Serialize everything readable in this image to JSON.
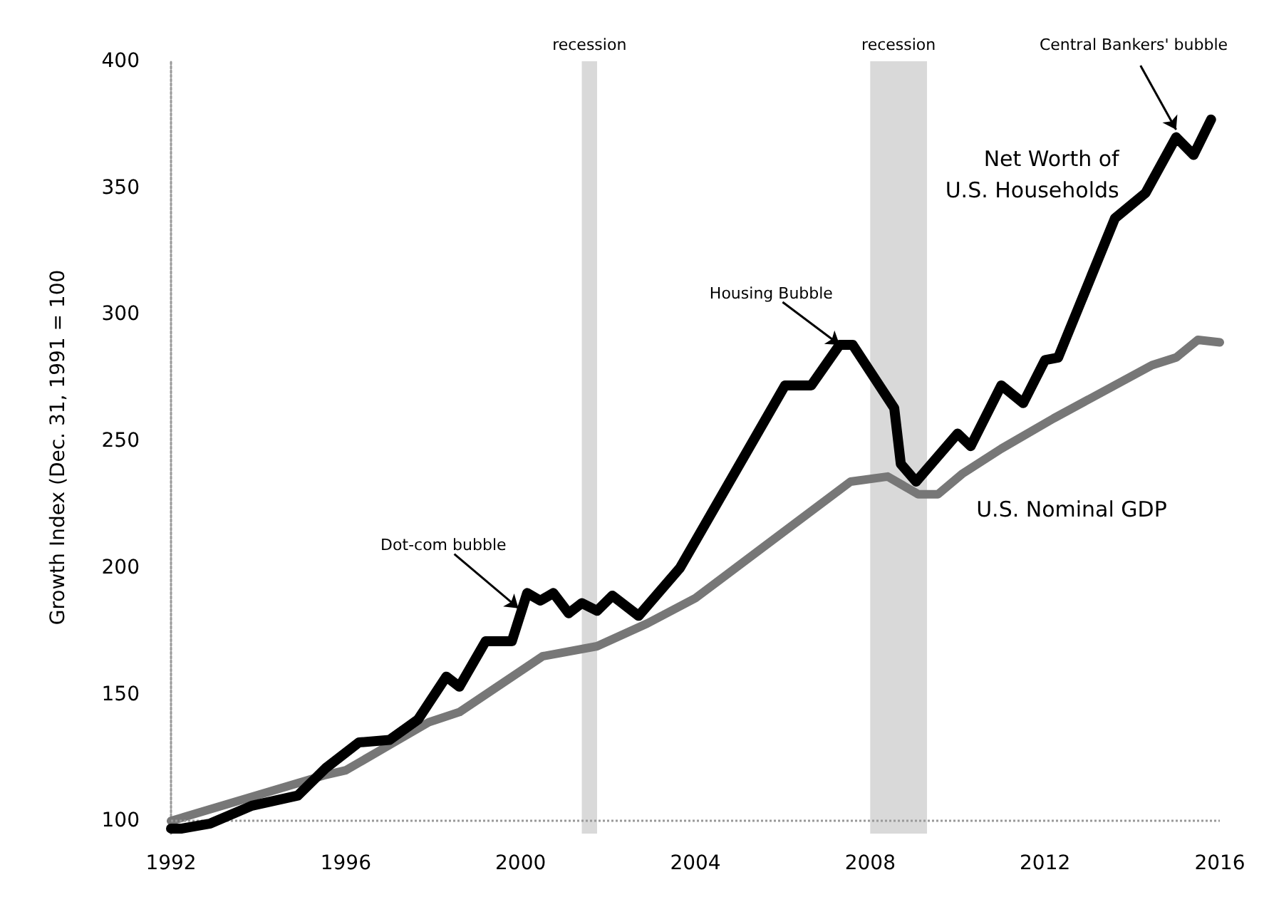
{
  "chart_data": {
    "type": "line",
    "ylabel": "Growth Index (Dec. 31, 1991 = 100",
    "xlim": [
      1992,
      2016
    ],
    "xticks": [
      1992,
      1996,
      2000,
      2004,
      2008,
      2012,
      2016
    ],
    "ylim": [
      95,
      400
    ],
    "yticks": [
      100,
      150,
      200,
      250,
      300,
      350,
      400
    ],
    "grid": false,
    "legend": false,
    "marker": "none",
    "line_style": "solid",
    "series": [
      {
        "name": "Net Worth of U.S. Households",
        "color": "#000000",
        "x": [
          1992.0,
          1992.25,
          1992.9,
          1993.85,
          1994.9,
          1995.55,
          1996.3,
          1997.0,
          1997.65,
          1998.3,
          1998.6,
          1999.2,
          1999.8,
          2000.15,
          2000.45,
          2000.75,
          2001.1,
          2001.4,
          2001.75,
          2002.1,
          2002.7,
          2003.65,
          2006.05,
          2006.65,
          2007.3,
          2007.6,
          2008.55,
          2008.7,
          2009.05,
          2010.0,
          2010.3,
          2011.0,
          2011.5,
          2012.0,
          2012.3,
          2013.6,
          2014.3,
          2015.0,
          2015.4,
          2015.8
        ],
        "values": [
          97,
          97,
          99,
          106,
          110,
          121,
          131,
          132,
          140,
          157,
          153,
          171,
          171,
          190,
          187,
          190,
          182,
          186,
          183,
          189,
          181,
          200,
          272,
          272,
          288,
          288,
          263,
          241,
          234,
          253,
          248,
          272,
          265,
          282,
          283,
          338,
          348,
          370,
          363,
          377
        ]
      },
      {
        "name": "U.S. Nominal GDP",
        "color": "#777777",
        "x": [
          1992.0,
          1995.5,
          1996.0,
          1997.0,
          1997.9,
          1998.6,
          2000.5,
          2001.75,
          2002.9,
          2004.0,
          2007.55,
          2008.4,
          2009.1,
          2009.55,
          2010.1,
          2011.0,
          2012.2,
          2014.45,
          2015.0,
          2015.5,
          2016.0
        ],
        "values": [
          100,
          118,
          120,
          130,
          139,
          143,
          165,
          169,
          178,
          188,
          234,
          236,
          229,
          229,
          237,
          247,
          259,
          280,
          283,
          290,
          289
        ]
      }
    ],
    "bands": [
      {
        "axis": "x",
        "from": 2001.4,
        "to": 2001.75,
        "label": "recession",
        "color": "#d9d9d9"
      },
      {
        "axis": "x",
        "from": 2008.0,
        "to": 2009.3,
        "label": "recession",
        "color": "#d9d9d9"
      }
    ],
    "ref_lines": [
      {
        "axis": "y",
        "value": 100,
        "label": null,
        "color": "#999999",
        "line_style": "dotted"
      }
    ],
    "annotations": [
      {
        "text": "Dot-com bubble",
        "x": 1999.95,
        "y": 184
      },
      {
        "text": "Housing Bubble",
        "x": 2007.3,
        "y": 288
      },
      {
        "text": "Central Bankers' bubble",
        "x": 2015.0,
        "y": 373
      }
    ]
  }
}
